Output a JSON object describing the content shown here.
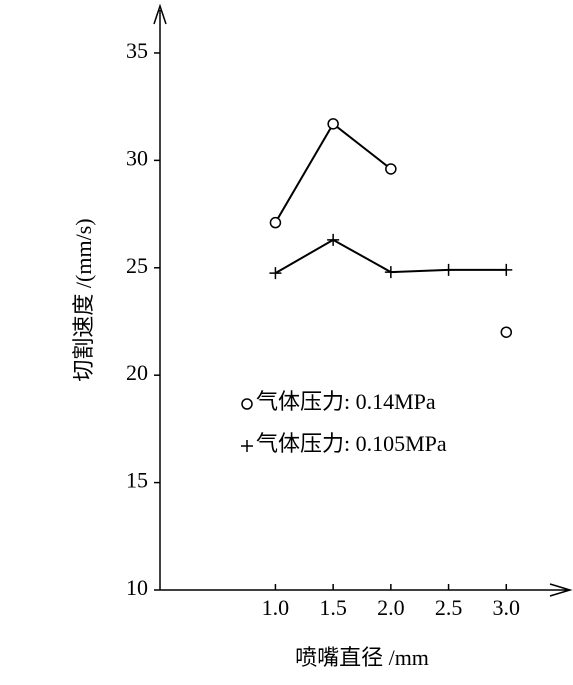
{
  "chart_data": {
    "type": "line",
    "x_label": "喷嘴直径 /mm",
    "y_label": "切割速度 /(mm/s)",
    "x": [
      1.0,
      1.5,
      2.0,
      2.5,
      3.0
    ],
    "xticks": [
      {
        "value": 1.0,
        "label": "1.0"
      },
      1.5,
      {
        "value": 2.0,
        "label": "2.0"
      },
      2.5,
      {
        "value": 3.0,
        "label": "3.0"
      }
    ],
    "xlim": [
      0,
      3.5
    ],
    "ylim": [
      10,
      37
    ],
    "yticks": [
      10,
      15,
      20,
      25,
      30,
      35
    ],
    "series": [
      {
        "name": "气体压力: 0.14MPa",
        "marker": "circle",
        "color": "#000000",
        "values": [
          27.1,
          31.7,
          29.6,
          null,
          22.0
        ]
      },
      {
        "name": "气体压力: 0.105MPa",
        "marker": "plus",
        "color": "#000000",
        "values": [
          24.75,
          26.3,
          24.8,
          24.9,
          24.9
        ]
      }
    ]
  }
}
